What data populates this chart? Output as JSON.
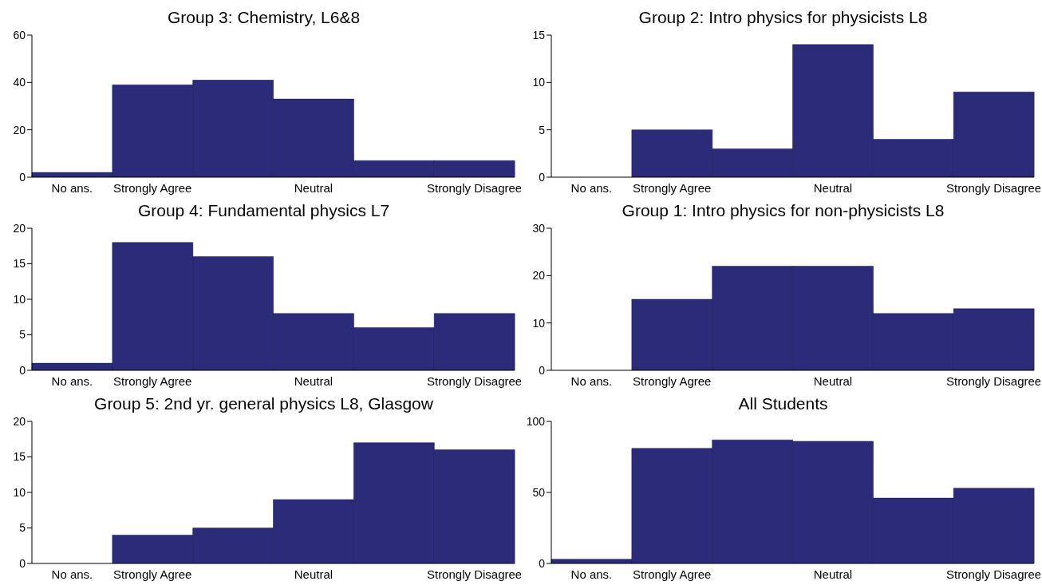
{
  "chart_data": [
    {
      "type": "bar",
      "title": "Group 3: Chemistry, L6&8",
      "categories": [
        "No ans.",
        "Strongly Agree",
        null,
        "Neutral",
        null,
        "Strongly Disagree"
      ],
      "values": [
        2,
        39,
        41,
        33,
        7,
        7
      ],
      "color": "#2b2b7a",
      "ylim": [
        0,
        60
      ],
      "yticks": [
        0,
        20,
        40,
        60
      ]
    },
    {
      "type": "bar",
      "title": "Group 2: Intro physics for physicists L8",
      "categories": [
        "No ans.",
        "Strongly Agree",
        null,
        "Neutral",
        null,
        "Strongly Disagree"
      ],
      "values": [
        0,
        5,
        3,
        14,
        4,
        9
      ],
      "color": "#2b2b7a",
      "ylim": [
        0,
        15
      ],
      "yticks": [
        0,
        5,
        10,
        15
      ]
    },
    {
      "type": "bar",
      "title": "Group 4: Fundamental physics L7",
      "categories": [
        "No ans.",
        "Strongly Agree",
        null,
        "Neutral",
        null,
        "Strongly Disagree"
      ],
      "values": [
        1,
        18,
        16,
        8,
        6,
        8
      ],
      "color": "#2b2b7a",
      "ylim": [
        0,
        20
      ],
      "yticks": [
        0,
        5,
        10,
        15,
        20
      ]
    },
    {
      "type": "bar",
      "title": "Group 1: Intro physics for non-physicists L8",
      "categories": [
        "No ans.",
        "Strongly Agree",
        null,
        "Neutral",
        null,
        "Strongly Disagree"
      ],
      "values": [
        0,
        15,
        22,
        22,
        12,
        13
      ],
      "color": "#2b2b7a",
      "ylim": [
        0,
        30
      ],
      "yticks": [
        0,
        10,
        20,
        30
      ]
    },
    {
      "type": "bar",
      "title": "Group 5: 2nd yr. general physics L8, Glasgow",
      "categories": [
        "No ans.",
        "Strongly Agree",
        null,
        "Neutral",
        null,
        "Strongly Disagree"
      ],
      "values": [
        0,
        4,
        5,
        9,
        17,
        16
      ],
      "color": "#2b2b7a",
      "ylim": [
        0,
        20
      ],
      "yticks": [
        0,
        5,
        10,
        15,
        20
      ]
    },
    {
      "type": "bar",
      "title": "All Students",
      "categories": [
        "No ans.",
        "Strongly Agree",
        null,
        "Neutral",
        null,
        "Strongly Disagree"
      ],
      "values": [
        3,
        81,
        87,
        86,
        46,
        53
      ],
      "color": "#2b2b7a",
      "ylim": [
        0,
        100
      ],
      "yticks": [
        0,
        50,
        100
      ]
    }
  ]
}
